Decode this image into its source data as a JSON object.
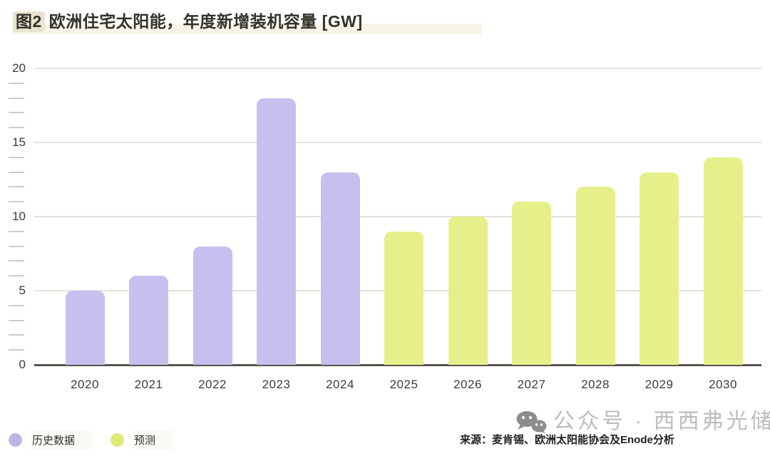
{
  "title": {
    "tag": "图2",
    "text": "欧洲住宅太阳能，年度新增装机容量 [GW]"
  },
  "legend": [
    {
      "label": "历史数据",
      "color": "#bfb4e6"
    },
    {
      "label": "预测",
      "color": "#dcea76"
    }
  ],
  "source": "来源：麦肯锡、欧洲太阳能协会及Enode分析",
  "watermark": {
    "icon": "wechat-icon",
    "text": "公众号 · 西西弗光储"
  },
  "colors": {
    "historical_bar": "#c7bfee",
    "forecast_bar": "#e5f08a",
    "title_highlight": "#e9e3cf",
    "title_strip": "#f7f4e7",
    "gridline": "#e4e3da",
    "axis": "#57544e",
    "watermark_gray": "#bdbdbd"
  },
  "chart_data": {
    "type": "bar",
    "title": "图2 欧洲住宅太阳能，年度新增装机容量 [GW]",
    "xlabel": "",
    "ylabel": "GW",
    "categories": [
      "2020",
      "2021",
      "2022",
      "2023",
      "2024",
      "2025",
      "2026",
      "2027",
      "2028",
      "2029",
      "2030"
    ],
    "series": [
      {
        "name": "历史数据",
        "color": "#c7bfee",
        "values": [
          5,
          6,
          8,
          18,
          13,
          null,
          null,
          null,
          null,
          null,
          null
        ]
      },
      {
        "name": "预测",
        "color": "#e5f08a",
        "values": [
          null,
          null,
          null,
          null,
          null,
          9,
          10,
          11,
          12,
          13,
          14
        ]
      }
    ],
    "ylim": [
      0,
      20
    ],
    "y_major_ticks": [
      0,
      5,
      10,
      15,
      20
    ],
    "y_minor_step": 1,
    "grid": "horizontal-major-only",
    "legend_position": "bottom-left"
  }
}
